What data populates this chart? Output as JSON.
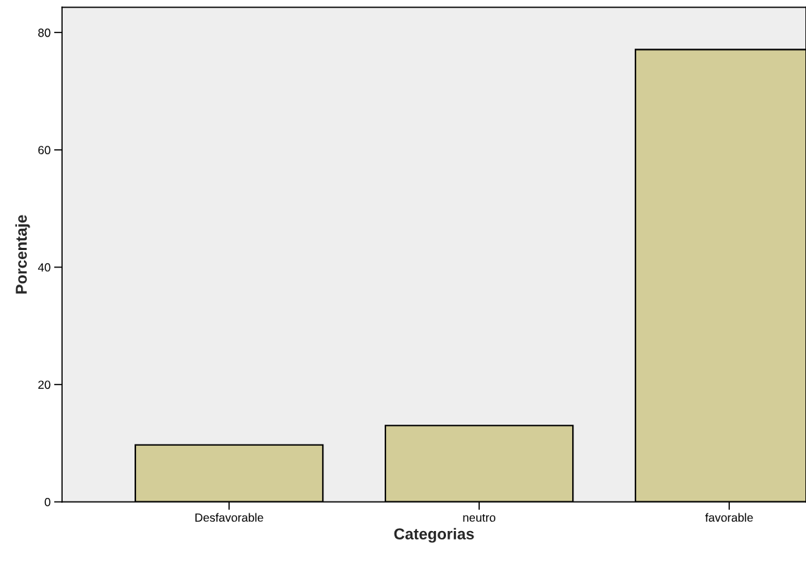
{
  "chart_data": {
    "type": "bar",
    "xlabel": "Categorias",
    "ylabel": "Porcentaje",
    "categories": [
      "Desfavorable",
      "neutro",
      "favorable"
    ],
    "values": [
      9.7,
      13.0,
      77.1
    ],
    "color": "#d3cd98",
    "ylim": [
      0,
      84.3
    ],
    "yticks": [
      0,
      20,
      40,
      60,
      80
    ],
    "grid": false,
    "legend": false
  }
}
